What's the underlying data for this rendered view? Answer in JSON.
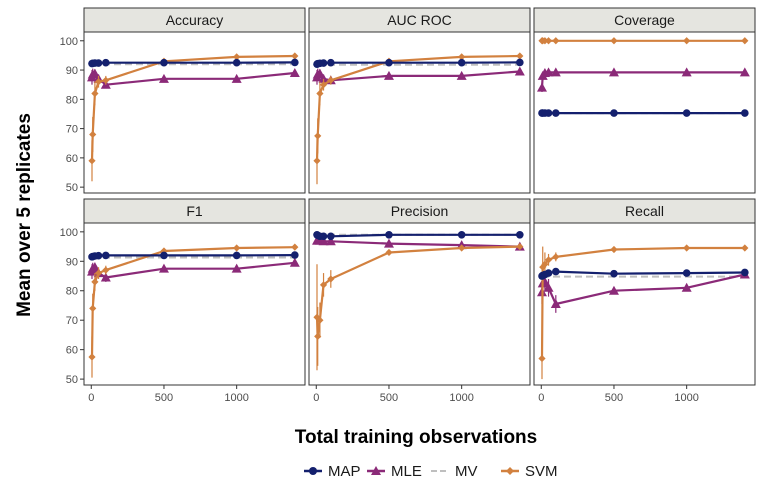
{
  "chart_data": {
    "type": "line",
    "xlabel": "Total training observations",
    "ylabel": "Mean over 5 replicates",
    "x": [
      5,
      10,
      25,
      50,
      100,
      500,
      1000,
      1400
    ],
    "x_ticks": [
      0,
      500,
      1000
    ],
    "x_tick_labels": [
      "0",
      "500",
      "1000"
    ],
    "xlim": [
      -50,
      1470
    ],
    "legend_position": "bottom",
    "colors": {
      "MAP": "#14206e",
      "MLE": "#8b2a78",
      "MV": "#bfbfbf",
      "SVM": "#d2813f"
    },
    "series_names": [
      "MAP",
      "MLE",
      "MV",
      "SVM"
    ],
    "rows": [
      {
        "ylim": [
          48,
          103
        ],
        "y_ticks": [
          50,
          60,
          70,
          80,
          90,
          100
        ],
        "y_tick_labels": [
          "50",
          "60",
          "70",
          "80",
          "90",
          "100"
        ],
        "panels": [
          {
            "title": "Accuracy",
            "series": [
              {
                "name": "MAP",
                "values": [
                  92.2,
                  92.3,
                  92.4,
                  92.4,
                  92.5,
                  92.5,
                  92.5,
                  92.6
                ],
                "err": [
                  0.3,
                  0.3,
                  0.3,
                  0.2,
                  0.2,
                  0.2,
                  0.2,
                  0.2
                ]
              },
              {
                "name": "MLE",
                "values": [
                  87.5,
                  88.5,
                  88.8,
                  87.0,
                  85.0,
                  87.0,
                  87.0,
                  89.0
                ],
                "err": [
                  2.5,
                  2.0,
                  1.5,
                  1.5,
                  1.2,
                  0.8,
                  0.8,
                  0.8
                ]
              },
              {
                "name": "MV",
                "values": [
                  92.0,
                  92.0,
                  92.0,
                  92.0,
                  92.0,
                  92.0,
                  92.0,
                  92.0
                ]
              },
              {
                "name": "SVM",
                "values": [
                  59.0,
                  68.0,
                  82.0,
                  86.0,
                  86.5,
                  93.0,
                  94.5,
                  94.8
                ],
                "err": [
                  7.0,
                  6.0,
                  4.0,
                  2.0,
                  1.5,
                  0.5,
                  0.4,
                  0.4
                ]
              }
            ]
          },
          {
            "title": "AUC ROC",
            "series": [
              {
                "name": "MAP",
                "values": [
                  92.0,
                  92.2,
                  92.3,
                  92.4,
                  92.5,
                  92.5,
                  92.5,
                  92.6
                ],
                "err": [
                  0.3,
                  0.3,
                  0.3,
                  0.2,
                  0.2,
                  0.2,
                  0.2,
                  0.2
                ]
              },
              {
                "name": "MLE",
                "values": [
                  87.5,
                  88.5,
                  88.8,
                  87.0,
                  86.5,
                  88.0,
                  88.0,
                  89.5
                ],
                "err": [
                  2.5,
                  2.0,
                  1.5,
                  1.5,
                  1.2,
                  0.8,
                  0.8,
                  0.8
                ]
              },
              {
                "name": "MV",
                "values": [
                  91.8,
                  91.8,
                  91.8,
                  91.8,
                  91.8,
                  91.8,
                  91.8,
                  91.8
                ]
              },
              {
                "name": "SVM",
                "values": [
                  59.0,
                  67.5,
                  82.0,
                  85.0,
                  86.5,
                  93.0,
                  94.5,
                  94.8
                ],
                "err": [
                  8.0,
                  6.0,
                  4.0,
                  2.0,
                  1.5,
                  0.5,
                  0.4,
                  0.4
                ]
              }
            ]
          },
          {
            "title": "Coverage",
            "series": [
              {
                "name": "MAP",
                "values": [
                  75.3,
                  75.3,
                  75.3,
                  75.3,
                  75.3,
                  75.3,
                  75.3,
                  75.3
                ]
              },
              {
                "name": "MLE",
                "values": [
                  84.0,
                  88.0,
                  89.0,
                  89.2,
                  89.2,
                  89.2,
                  89.2,
                  89.2
                ],
                "err": [
                  1.5,
                  0.8,
                  0.3,
                  0.2,
                  0.2,
                  0.2,
                  0.2,
                  0.2
                ]
              },
              {
                "name": "MV",
                "values": [
                  75.3,
                  75.3,
                  75.3,
                  75.3,
                  75.3,
                  75.3,
                  75.3,
                  75.3
                ]
              },
              {
                "name": "SVM",
                "values": [
                  100,
                  100,
                  100,
                  100,
                  100,
                  100,
                  100,
                  100
                ]
              }
            ]
          }
        ]
      },
      {
        "ylim": [
          48,
          103
        ],
        "y_ticks": [
          50,
          60,
          70,
          80,
          90,
          100
        ],
        "y_tick_labels": [
          "50",
          "60",
          "70",
          "80",
          "90",
          "100"
        ],
        "panels": [
          {
            "title": "F1",
            "series": [
              {
                "name": "MAP",
                "values": [
                  91.5,
                  91.6,
                  91.8,
                  91.9,
                  92.0,
                  92.0,
                  92.0,
                  92.1
                ],
                "err": [
                  0.4,
                  0.3,
                  0.3,
                  0.2,
                  0.2,
                  0.2,
                  0.2,
                  0.2
                ]
              },
              {
                "name": "MLE",
                "values": [
                  86.5,
                  87.5,
                  88.0,
                  86.0,
                  84.5,
                  87.5,
                  87.5,
                  89.5
                ],
                "err": [
                  2.5,
                  2.0,
                  1.5,
                  1.5,
                  1.5,
                  0.8,
                  0.8,
                  0.8
                ]
              },
              {
                "name": "MV",
                "values": [
                  91.3,
                  91.3,
                  91.3,
                  91.3,
                  91.3,
                  91.3,
                  91.3,
                  91.3
                ]
              },
              {
                "name": "SVM",
                "values": [
                  57.5,
                  74.0,
                  83.0,
                  86.0,
                  87.0,
                  93.5,
                  94.5,
                  94.8
                ],
                "err": [
                  7.0,
                  5.0,
                  3.0,
                  2.0,
                  1.5,
                  0.5,
                  0.4,
                  0.4
                ]
              }
            ]
          },
          {
            "title": "Precision",
            "series": [
              {
                "name": "MAP",
                "values": [
                  99.0,
                  98.8,
                  98.5,
                  98.5,
                  98.5,
                  99.0,
                  99.0,
                  99.0
                ],
                "err": [
                  0.5,
                  0.5,
                  0.4,
                  0.3,
                  0.3,
                  0.2,
                  0.2,
                  0.2
                ]
              },
              {
                "name": "MLE",
                "values": [
                  97.0,
                  97.0,
                  97.0,
                  96.8,
                  96.8,
                  96.0,
                  95.5,
                  95.0
                ],
                "err": [
                  1.0,
                  0.8,
                  0.6,
                  0.5,
                  0.5,
                  0.4,
                  0.4,
                  0.4
                ]
              },
              {
                "name": "MV",
                "values": [
                  99.0,
                  99.0,
                  99.0,
                  99.0,
                  99.0,
                  99.0,
                  99.0,
                  99.0
                ]
              },
              {
                "name": "SVM",
                "values": [
                  71.0,
                  64.5,
                  70.0,
                  82.0,
                  84.0,
                  93.0,
                  94.5,
                  95.0
                ],
                "err": [
                  18.0,
                  10.0,
                  6.0,
                  4.0,
                  3.0,
                  0.8,
                  0.5,
                  0.5
                ]
              }
            ]
          },
          {
            "title": "Recall",
            "series": [
              {
                "name": "MAP",
                "values": [
                  85.0,
                  85.2,
                  85.5,
                  86.0,
                  86.5,
                  85.8,
                  86.0,
                  86.2
                ],
                "err": [
                  0.6,
                  0.5,
                  0.5,
                  0.4,
                  0.4,
                  0.3,
                  0.3,
                  0.3
                ]
              },
              {
                "name": "MLE",
                "values": [
                  79.5,
                  82.5,
                  83.0,
                  81.0,
                  75.5,
                  80.0,
                  81.0,
                  85.5
                ],
                "err": [
                  4.0,
                  3.5,
                  3.0,
                  3.0,
                  3.0,
                  1.0,
                  1.0,
                  1.0
                ]
              },
              {
                "name": "MV",
                "values": [
                  84.8,
                  84.8,
                  84.8,
                  84.8,
                  84.8,
                  84.8,
                  84.8,
                  84.8
                ]
              },
              {
                "name": "SVM",
                "values": [
                  57.0,
                  88.0,
                  89.0,
                  90.5,
                  91.5,
                  94.0,
                  94.5,
                  94.5
                ],
                "err": [
                  7.0,
                  7.0,
                  4.0,
                  2.0,
                  1.5,
                  0.5,
                  0.4,
                  0.4
                ]
              }
            ]
          }
        ]
      }
    ]
  }
}
